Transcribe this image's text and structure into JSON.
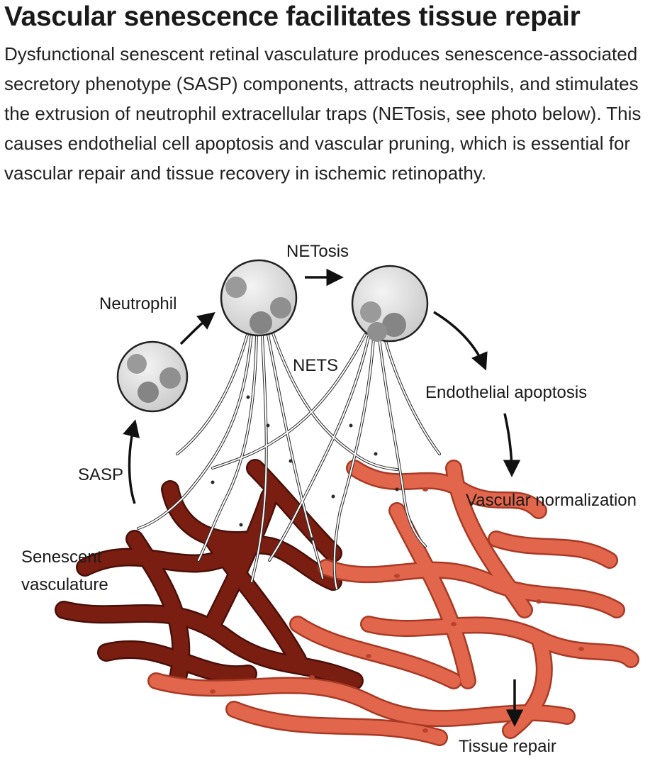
{
  "figure": {
    "title": "Vascular senescence facilitates tissue repair",
    "summary": "Dysfunctional senescent retinal vasculature produces senescence-associated secretory phenotype (SASP) components, attracts neutrophils, and stimulates the extrusion of neutrophil extracellular traps (NETosis, see photo below). This causes endothelial cell apoptosis and vascular pruning, which is essential for vascular repair and tissue recovery in ischemic retinopathy."
  },
  "labels": {
    "netosis": "NETosis",
    "neutrophil": "Neutrophil",
    "nets": "NETS",
    "endothelial_apoptosis": "Endothelial apoptosis",
    "sasp": "SASP",
    "vascular_normalization": "Vascular normalization",
    "senescent_line1": "Senescent",
    "senescent_line2": "vasculature",
    "tissue_repair": "Tissue repair"
  },
  "colors": {
    "senescent_vessel": "#7a1e12",
    "healthy_vessel": "#e2664c",
    "neutrophil_fill": "#dcdcdc",
    "nucleus": "#8f8f8f",
    "net_fiber": "#ffffff"
  }
}
